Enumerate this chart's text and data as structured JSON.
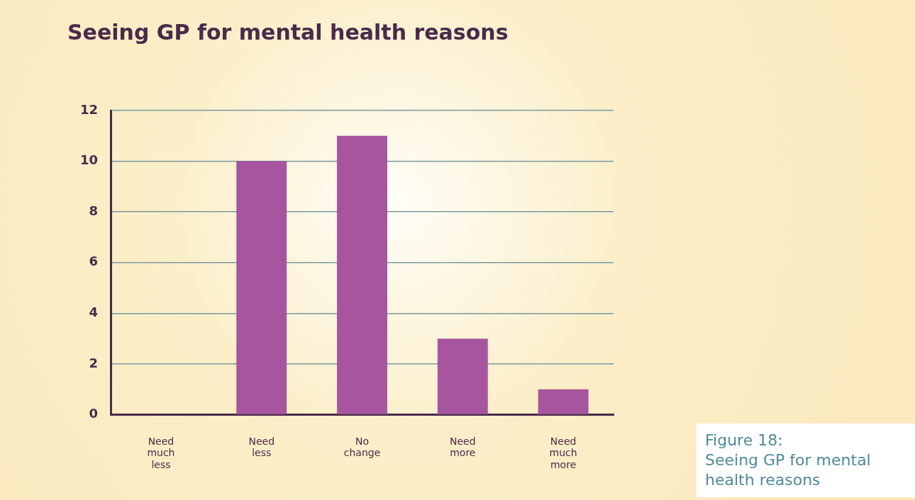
{
  "chart_data": {
    "type": "bar",
    "title": "Seeing GP for mental health reasons",
    "categories": [
      "Need much less",
      "Need less",
      "No change",
      "Need more",
      "Need much more"
    ],
    "values": [
      0,
      10,
      11,
      3,
      1
    ],
    "color": "#a6559e",
    "ylim": [
      0,
      12
    ],
    "yticks": [
      0,
      2,
      4,
      6,
      8,
      10,
      12
    ],
    "grid": "y",
    "annotations": [
      "Figure 18:\nSeeing GP for mental health reasons"
    ]
  }
}
